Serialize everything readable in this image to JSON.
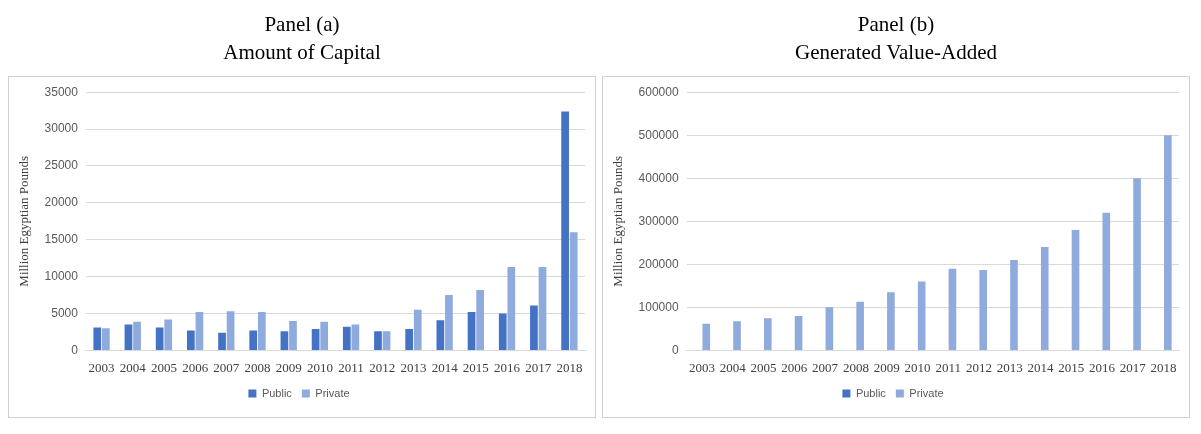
{
  "chart_data": [
    {
      "type": "bar",
      "title": "Panel (a)",
      "subtitle": "Amount of Capital",
      "ylabel": "Million Egyptian Pounds",
      "categories": [
        "2003",
        "2004",
        "2005",
        "2006",
        "2007",
        "2008",
        "2009",
        "2010",
        "2011",
        "2012",
        "2013",
        "2014",
        "2015",
        "2016",
        "2017",
        "2018"
      ],
      "series": [
        {
          "name": "Public",
          "color": "#4472c4",
          "values": [
            3100,
            3500,
            3100,
            2700,
            2400,
            2700,
            2600,
            2900,
            3200,
            2600,
            2900,
            4100,
            5200,
            5000,
            6100,
            32400
          ]
        },
        {
          "name": "Private",
          "color": "#8faadc",
          "values": [
            3000,
            3900,
            4200,
            5200,
            5300,
            5200,
            4000,
            3900,
            3500,
            2600,
            5500,
            7500,
            8200,
            11300,
            11300,
            16000
          ]
        }
      ],
      "ylim": [
        0,
        35000
      ],
      "yticks": [
        0,
        5000,
        10000,
        15000,
        20000,
        25000,
        30000,
        35000
      ],
      "grid": "y",
      "legend": "bottom"
    },
    {
      "type": "bar",
      "title": "Panel (b)",
      "subtitle": "Generated Value-Added",
      "ylabel": "Million Egyptian Pounds",
      "categories": [
        "2003",
        "2004",
        "2005",
        "2006",
        "2007",
        "2008",
        "2009",
        "2010",
        "2011",
        "2012",
        "2013",
        "2014",
        "2015",
        "2016",
        "2017",
        "2018"
      ],
      "series": [
        {
          "name": "Public",
          "color": "#4472c4",
          "values": [
            null,
            null,
            null,
            null,
            null,
            null,
            null,
            null,
            null,
            null,
            null,
            null,
            null,
            null,
            null,
            null
          ]
        },
        {
          "name": "Private",
          "color": "#8faadc",
          "values": [
            62000,
            68000,
            75000,
            80000,
            100000,
            113000,
            135000,
            160000,
            190000,
            187000,
            210000,
            240000,
            280000,
            320000,
            400000,
            500000
          ]
        }
      ],
      "ylim": [
        0,
        600000
      ],
      "yticks": [
        0,
        100000,
        200000,
        300000,
        400000,
        500000,
        600000
      ],
      "grid": "y",
      "legend": "bottom"
    }
  ]
}
